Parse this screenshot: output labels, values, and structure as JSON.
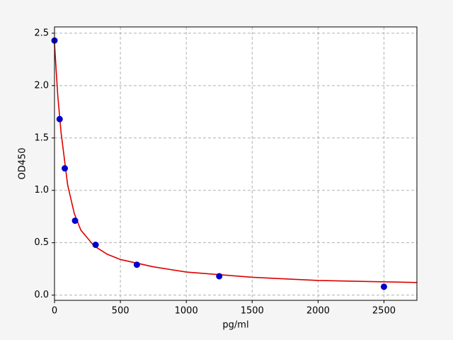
{
  "chart_data": {
    "type": "scatter",
    "xlabel": "pg/ml",
    "ylabel": "OD450",
    "xlim": [
      0,
      2750
    ],
    "ylim": [
      -0.05,
      2.56
    ],
    "xticks": [
      0,
      500,
      1000,
      1500,
      2000,
      2500
    ],
    "yticks": [
      {
        "value": 0,
        "label": "0.0"
      },
      {
        "value": 0.5,
        "label": "0.5"
      },
      {
        "value": 1,
        "label": "1.0"
      },
      {
        "value": 1.5,
        "label": "1.5"
      },
      {
        "value": 2,
        "label": "2.0"
      },
      {
        "value": 2.5,
        "label": "2.5"
      }
    ],
    "grid": true,
    "series": [
      {
        "type": "scatter",
        "color": "#0000cc",
        "x": [
          0,
          39,
          78,
          156,
          312,
          625,
          1250,
          2500
        ],
        "values": [
          2.43,
          1.68,
          1.21,
          0.71,
          0.48,
          0.29,
          0.18,
          0.08
        ]
      },
      {
        "type": "line",
        "color": "#dd0000",
        "x": [
          0,
          25,
          50,
          100,
          150,
          200,
          300,
          400,
          500,
          750,
          1000,
          1500,
          2000,
          2750
        ],
        "values": [
          2.4,
          1.9,
          1.55,
          1.05,
          0.78,
          0.62,
          0.47,
          0.39,
          0.34,
          0.27,
          0.22,
          0.17,
          0.14,
          0.12
        ]
      }
    ]
  }
}
